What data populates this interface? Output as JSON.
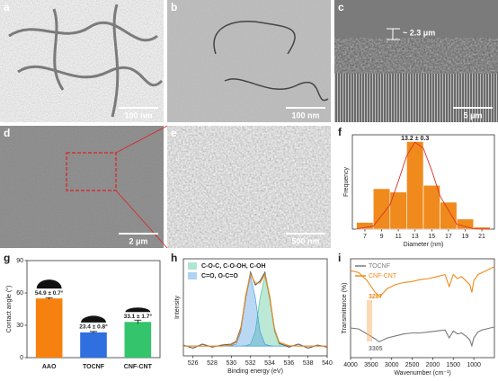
{
  "panels": [
    {
      "label": "a",
      "scale_bar": "100 nm"
    },
    {
      "label": "b",
      "scale_bar": "100 nm"
    },
    {
      "label": "c",
      "annotation": "~ 2.3 μm",
      "scale_bar": "5 μm"
    },
    {
      "label": "d",
      "scale_bar": "2 μm"
    },
    {
      "label": "e",
      "scale_bar": "500 nm"
    }
  ],
  "chart_data": [
    {
      "type": "histogram",
      "label": "f",
      "xlabel": "Diameter (nm)",
      "ylabel": "Frequency",
      "annotation": "13.2 ± 0.3",
      "bins": [
        6,
        8,
        10,
        12,
        14,
        16,
        18,
        20,
        22
      ],
      "values": [
        1,
        6,
        5.5,
        13,
        6.5,
        4,
        1.5,
        0.3
      ],
      "color": "#f08a1c",
      "fit": {
        "color": "#d9342b",
        "x": [
          6,
          8,
          10,
          11,
          12,
          13,
          14,
          15,
          16,
          18,
          20,
          22
        ],
        "values": [
          0.02,
          0.44,
          3.6,
          7.1,
          10.9,
          12.9,
          12.0,
          8.7,
          4.9,
          0.73,
          0.04,
          0
        ]
      },
      "xlim": [
        5.5,
        22.5
      ],
      "ylim": [
        0,
        14
      ],
      "xticks": [
        7,
        9,
        11,
        13,
        15,
        17,
        19,
        21
      ]
    },
    {
      "type": "bar",
      "label": "g",
      "ylabel": "Contact angle (°)",
      "categories": [
        "AAO",
        "TOCNF",
        "CNF-CNT"
      ],
      "values": [
        54.9,
        23.4,
        33.1
      ],
      "errors": [
        0.7,
        0.8,
        1.7
      ],
      "value_labels": [
        "54.9 ± 0.7°",
        "23.4 ± 0.8°",
        "33.1 ± 1.7°"
      ],
      "colors": [
        "#f7810f",
        "#2f6fe0",
        "#34c46b"
      ],
      "ylim": [
        0,
        90
      ],
      "yticks": [
        0,
        30,
        60,
        90
      ]
    },
    {
      "type": "line",
      "label": "h",
      "xlabel": "Binding energy (eV)",
      "ylabel": "Intensity",
      "x": [
        525,
        526,
        527,
        528,
        529,
        530,
        530.5,
        531,
        531.5,
        532,
        532.5,
        533,
        533.5,
        534,
        534.5,
        535,
        536,
        537,
        538,
        539,
        540
      ],
      "series": [
        {
          "name": "C-O-C, C-O-OH, C-OH",
          "color": "#3cbf8a",
          "fill": true,
          "values": [
            10,
            10,
            10,
            10,
            10,
            10,
            10,
            10,
            10.5,
            12,
            25,
            60,
            82,
            60,
            25,
            12,
            10,
            10,
            10,
            10,
            10
          ]
        },
        {
          "name": "C=O, O-C=O",
          "color": "#3a8fe0",
          "fill": true,
          "values": [
            10,
            10,
            10,
            10,
            10,
            10.5,
            12,
            25,
            60,
            82,
            60,
            25,
            12,
            10.5,
            10,
            10,
            10,
            10,
            10,
            10,
            10
          ]
        },
        {
          "color": "#556070",
          "values": [
            11,
            8,
            12,
            9,
            11,
            12,
            15,
            29,
            60,
            86,
            73,
            77,
            86,
            60,
            28,
            13,
            9,
            12,
            8,
            11,
            9
          ]
        },
        {
          "color": "#f08a1c",
          "values": [
            10,
            10,
            10,
            10,
            10,
            11,
            14,
            27,
            62,
            84,
            75,
            75,
            84,
            62,
            27,
            14,
            10.5,
            10,
            10,
            10,
            10
          ]
        }
      ],
      "xlim": [
        525,
        540
      ],
      "ylim": [
        0,
        100
      ],
      "xticks": [
        526,
        528,
        530,
        532,
        534,
        536,
        538,
        540
      ]
    },
    {
      "type": "line",
      "label": "i",
      "xlabel": "Wavenumber (cm⁻¹)",
      "ylabel": "Transmittance (%)",
      "series": [
        {
          "name": "TOCNF",
          "color": "#7a7a7a",
          "x": [
            4000,
            3800,
            3600,
            3400,
            3305,
            3100,
            2900,
            2700,
            2500,
            2300,
            2100,
            1900,
            1700,
            1600,
            1500,
            1400,
            1300,
            1200,
            1100,
            1050,
            1000,
            900,
            800,
            700,
            600,
            500
          ],
          "values": [
            30,
            29,
            24,
            19,
            16,
            20,
            22,
            24,
            25,
            25,
            26,
            27,
            28,
            20,
            27,
            24,
            25,
            22,
            18,
            12,
            20,
            26,
            28,
            29,
            30,
            31
          ]
        },
        {
          "name": "CNF-CNT",
          "color": "#f08a1c",
          "x": [
            4000,
            3800,
            3600,
            3400,
            3287,
            3100,
            2900,
            2700,
            2500,
            2300,
            2100,
            1900,
            1700,
            1600,
            1500,
            1400,
            1300,
            1200,
            1100,
            1050,
            1000,
            900,
            800,
            700,
            600,
            500
          ],
          "values": [
            88,
            86,
            78,
            66,
            62,
            70,
            74,
            76,
            77,
            79,
            80,
            82,
            84,
            72,
            84,
            80,
            82,
            78,
            74,
            66,
            78,
            84,
            86,
            88,
            90,
            92
          ]
        }
      ],
      "annotations": [
        {
          "text": "3287",
          "color": "#f08a1c"
        },
        {
          "text": "3305",
          "color": "#7a7a7a"
        }
      ],
      "xlim": [
        4000,
        500
      ],
      "ylim": [
        0,
        100
      ],
      "xticks": [
        4000,
        3500,
        3000,
        2500,
        2000,
        1500,
        1000
      ]
    }
  ]
}
